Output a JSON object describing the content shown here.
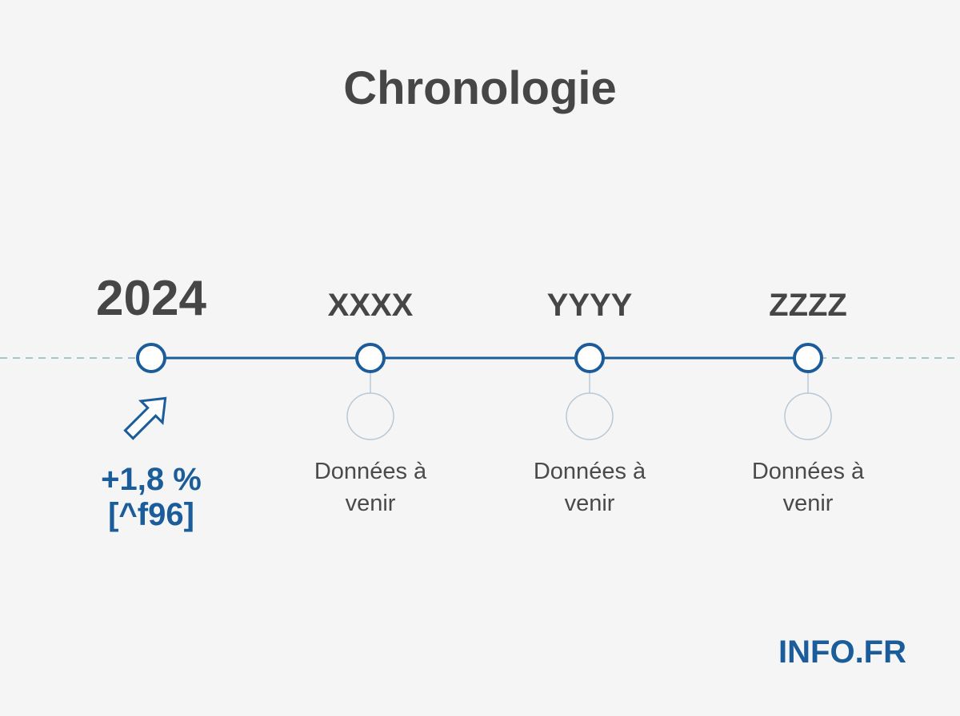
{
  "title": "Chronologie",
  "colors": {
    "accent": "#1b5c9b",
    "text": "#464646",
    "muted_circle": "#b8c8d6",
    "dashed_line": "#8fb3bf",
    "background": "#f5f5f5"
  },
  "milestones": [
    {
      "year": "2024",
      "value_line1": "+1,8 %",
      "value_line2": "[^f96]",
      "trend_icon": "arrow-up-right-icon"
    },
    {
      "year": "XXXX",
      "pending_line1": "Données à",
      "pending_line2": "venir",
      "icon": "empty-circle-icon"
    },
    {
      "year": "YYYY",
      "pending_line1": "Données à",
      "pending_line2": "venir",
      "icon": "empty-circle-icon"
    },
    {
      "year": "ZZZZ",
      "pending_line1": "Données à",
      "pending_line2": "venir",
      "icon": "empty-circle-icon"
    }
  ],
  "brand": "INFO.FR"
}
